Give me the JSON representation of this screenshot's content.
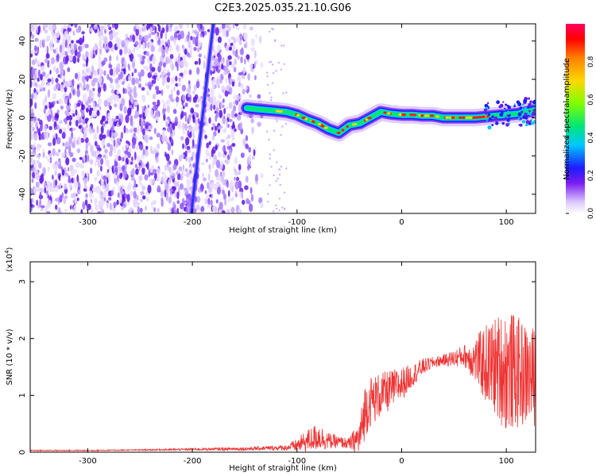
{
  "title": "C2E3.2025.035.21.10.G06",
  "chart_data": [
    {
      "type": "heatmap",
      "xlabel": "Height of straight line (km)",
      "ylabel": "Frequency (Hz)",
      "xlim": [
        -355,
        128
      ],
      "ylim": [
        -50,
        49
      ],
      "xticks": [
        -300,
        -200,
        -100,
        0,
        100
      ],
      "yticks": [
        -40,
        -20,
        0,
        20,
        40
      ],
      "xtick_labels": [
        "-300",
        "-200",
        "-100",
        "0",
        "100"
      ],
      "ytick_labels": [
        "-40",
        "-20",
        "0",
        "20",
        "40"
      ],
      "colorbar": {
        "label": "Normalized spectral amplitude",
        "range": [
          0.0,
          1.0
        ],
        "ticks": [
          0.0,
          0.2,
          0.4,
          0.6,
          0.8
        ],
        "tick_labels": [
          "0.0",
          "0.2",
          "0.4",
          "0.6",
          "0.8"
        ],
        "colors": [
          "#ffffff",
          "#6a00e8",
          "#1d1cff",
          "#00c8ff",
          "#00e676",
          "#7fff00",
          "#ffd700",
          "#ff8000",
          "#ff0000",
          "#ff0060"
        ]
      },
      "noise_region": {
        "x": [
          -355,
          -130
        ],
        "y": [
          -50,
          49
        ]
      },
      "streak": {
        "x_at_bottom": -201,
        "x_at_top": -180,
        "color": "#2233ff"
      },
      "ridge": {
        "x": [
          -148,
          -140,
          -130,
          -120,
          -110,
          -100,
          -90,
          -80,
          -70,
          -60,
          -50,
          -40,
          -30,
          -20,
          -10,
          0,
          10,
          20,
          30,
          40,
          50,
          60,
          70,
          80,
          90,
          100,
          110,
          120,
          128
        ],
        "y": [
          5,
          4.5,
          4,
          3.5,
          3,
          1.5,
          -1,
          -3,
          -6,
          -8,
          -4,
          -3,
          0,
          3,
          2,
          1.5,
          1.5,
          1,
          1,
          0,
          0,
          0,
          0,
          0.5,
          1,
          1.5,
          2,
          3,
          4
        ]
      }
    },
    {
      "type": "line",
      "xlabel": "Height of straight line (km)",
      "ylabel": "SNR (10 * v/v)",
      "y_multiplier": "(x10^4)",
      "xlim": [
        -355,
        128
      ],
      "ylim": [
        0,
        3.35
      ],
      "xticks": [
        -300,
        -200,
        -100,
        0,
        100
      ],
      "yticks": [
        0,
        1,
        2,
        3
      ],
      "xtick_labels": [
        "-300",
        "-200",
        "-100",
        "0",
        "100"
      ],
      "ytick_labels": [
        "0",
        "1",
        "2",
        "3"
      ],
      "color": "#ee3333",
      "x": [
        -355,
        -300,
        -250,
        -200,
        -150,
        -110,
        -100,
        -90,
        -80,
        -70,
        -60,
        -50,
        -40,
        -35,
        -30,
        -20,
        -10,
        0,
        10,
        20,
        30,
        40,
        50,
        60,
        70,
        80,
        90,
        100,
        110,
        120,
        128
      ],
      "y": [
        0.03,
        0.03,
        0.04,
        0.05,
        0.06,
        0.08,
        0.12,
        0.2,
        0.28,
        0.2,
        0.18,
        0.15,
        0.25,
        0.75,
        0.9,
        1.0,
        1.1,
        1.2,
        1.35,
        1.5,
        1.58,
        1.62,
        1.65,
        1.7,
        1.62,
        1.55,
        1.5,
        1.45,
        1.4,
        1.35,
        1.3
      ],
      "noise_amp": [
        0.01,
        0.01,
        0.01,
        0.02,
        0.03,
        0.05,
        0.12,
        0.2,
        0.25,
        0.15,
        0.1,
        0.1,
        0.35,
        0.5,
        0.45,
        0.4,
        0.35,
        0.3,
        0.2,
        0.15,
        0.1,
        0.1,
        0.15,
        0.2,
        0.4,
        0.7,
        0.9,
        1.1,
        1.0,
        0.9,
        0.9
      ]
    }
  ]
}
